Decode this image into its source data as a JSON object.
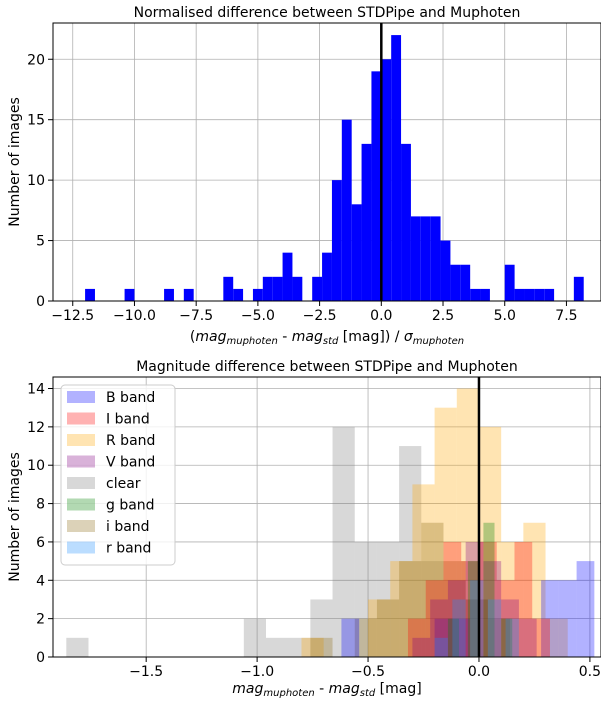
{
  "chart_data": [
    {
      "type": "histogram",
      "title": "Normalised difference between STDPipe and Muphoten",
      "xlabel": "(mag_muphoten - mag_std [mag]) / σ_muphoten",
      "xlabel_parts": {
        "open": "(",
        "mag": "mag",
        "sub_a": "muphoten",
        "minus": " - ",
        "mag2": "mag",
        "sub_b": "std",
        "unit": " [mag]) / ",
        "sigma": "σ",
        "sub_c": "muphoten"
      },
      "ylabel": "Number of images",
      "xlim": [
        -13.3,
        8.9
      ],
      "ylim": [
        0,
        23
      ],
      "xticks": [
        -12.5,
        -10.0,
        -7.5,
        -5.0,
        -2.5,
        0.0,
        2.5,
        5.0,
        7.5
      ],
      "xtick_labels": [
        "−12.5",
        "−10.0",
        "−7.5",
        "−5.0",
        "−2.5",
        "0.0",
        "2.5",
        "5.0",
        "7.5"
      ],
      "yticks": [
        0,
        5,
        10,
        15,
        20
      ],
      "ytick_labels": [
        "0",
        "5",
        "10",
        "15",
        "20"
      ],
      "grid": true,
      "color": "#0000ff",
      "vline_x": 0,
      "bins": [
        {
          "x0": -12.0,
          "x1": -11.6,
          "count": 1
        },
        {
          "x0": -10.4,
          "x1": -10.0,
          "count": 1
        },
        {
          "x0": -8.8,
          "x1": -8.4,
          "count": 1
        },
        {
          "x0": -8.0,
          "x1": -7.6,
          "count": 1
        },
        {
          "x0": -6.4,
          "x1": -6.0,
          "count": 2
        },
        {
          "x0": -6.0,
          "x1": -5.6,
          "count": 1
        },
        {
          "x0": -5.2,
          "x1": -4.8,
          "count": 1
        },
        {
          "x0": -4.8,
          "x1": -4.4,
          "count": 2
        },
        {
          "x0": -4.4,
          "x1": -4.0,
          "count": 2
        },
        {
          "x0": -4.0,
          "x1": -3.6,
          "count": 4
        },
        {
          "x0": -3.6,
          "x1": -3.2,
          "count": 2
        },
        {
          "x0": -2.8,
          "x1": -2.4,
          "count": 2
        },
        {
          "x0": -2.4,
          "x1": -2.0,
          "count": 4
        },
        {
          "x0": -2.0,
          "x1": -1.6,
          "count": 10
        },
        {
          "x0": -1.6,
          "x1": -1.2,
          "count": 15
        },
        {
          "x0": -1.2,
          "x1": -0.8,
          "count": 8
        },
        {
          "x0": -0.8,
          "x1": -0.4,
          "count": 13
        },
        {
          "x0": -0.4,
          "x1": 0.0,
          "count": 19
        },
        {
          "x0": 0.0,
          "x1": 0.4,
          "count": 20
        },
        {
          "x0": 0.4,
          "x1": 0.8,
          "count": 22
        },
        {
          "x0": 0.8,
          "x1": 1.2,
          "count": 13
        },
        {
          "x0": 1.2,
          "x1": 1.6,
          "count": 7
        },
        {
          "x0": 1.6,
          "x1": 2.0,
          "count": 7
        },
        {
          "x0": 2.0,
          "x1": 2.4,
          "count": 7
        },
        {
          "x0": 2.4,
          "x1": 2.8,
          "count": 5
        },
        {
          "x0": 2.8,
          "x1": 3.2,
          "count": 3
        },
        {
          "x0": 3.2,
          "x1": 3.6,
          "count": 3
        },
        {
          "x0": 3.6,
          "x1": 4.0,
          "count": 1
        },
        {
          "x0": 4.0,
          "x1": 4.4,
          "count": 1
        },
        {
          "x0": 5.0,
          "x1": 5.4,
          "count": 3
        },
        {
          "x0": 5.4,
          "x1": 5.8,
          "count": 1
        },
        {
          "x0": 5.8,
          "x1": 6.2,
          "count": 1
        },
        {
          "x0": 6.2,
          "x1": 6.6,
          "count": 1
        },
        {
          "x0": 6.6,
          "x1": 7.0,
          "count": 1
        },
        {
          "x0": 7.8,
          "x1": 8.2,
          "count": 2
        }
      ]
    },
    {
      "type": "histogram",
      "title": "Magnitude difference between STDPipe and Muphoten",
      "xlabel": "mag_muphoten - mag_std [mag]",
      "xlabel_parts": {
        "mag": "mag",
        "sub_a": "muphoten",
        "minus": " - ",
        "mag2": "mag",
        "sub_b": "std",
        "unit": " [mag]"
      },
      "ylabel": "Number of images",
      "xlim": [
        -1.92,
        0.55
      ],
      "ylim": [
        0,
        14.6
      ],
      "xticks": [
        -1.5,
        -1.0,
        -0.5,
        0.0,
        0.5
      ],
      "xtick_labels": [
        "−1.5",
        "−1.0",
        "−0.5",
        "0.0",
        "0.5"
      ],
      "yticks": [
        0,
        2,
        4,
        6,
        8,
        10,
        12,
        14
      ],
      "ytick_labels": [
        "0",
        "2",
        "4",
        "6",
        "8",
        "10",
        "12",
        "14"
      ],
      "grid": true,
      "vline_x": 0,
      "legend_position": "upper-left",
      "series": [
        {
          "name": "clear",
          "color": "#7f7f7f",
          "bins": [
            {
              "x0": -1.86,
              "x1": -1.76,
              "count": 1
            },
            {
              "x0": -1.06,
              "x1": -0.96,
              "count": 2
            },
            {
              "x0": -0.96,
              "x1": -0.86,
              "count": 1
            },
            {
              "x0": -0.86,
              "x1": -0.76,
              "count": 1
            },
            {
              "x0": -0.76,
              "x1": -0.66,
              "count": 3
            },
            {
              "x0": -0.66,
              "x1": -0.56,
              "count": 12
            },
            {
              "x0": -0.56,
              "x1": -0.46,
              "count": 6
            },
            {
              "x0": -0.46,
              "x1": -0.36,
              "count": 6
            },
            {
              "x0": -0.36,
              "x1": -0.26,
              "count": 11
            },
            {
              "x0": -0.26,
              "x1": -0.16,
              "count": 5
            },
            {
              "x0": -0.16,
              "x1": -0.06,
              "count": 4
            },
            {
              "x0": -0.06,
              "x1": 0.04,
              "count": 3
            }
          ]
        },
        {
          "name": "R band",
          "color": "#ffa500",
          "bins": [
            {
              "x0": -0.8,
              "x1": -0.7,
              "count": 1
            },
            {
              "x0": -0.5,
              "x1": -0.4,
              "count": 3
            },
            {
              "x0": -0.4,
              "x1": -0.3,
              "count": 5
            },
            {
              "x0": -0.3,
              "x1": -0.2,
              "count": 9
            },
            {
              "x0": -0.2,
              "x1": -0.1,
              "count": 13
            },
            {
              "x0": -0.1,
              "x1": 0.0,
              "count": 14
            },
            {
              "x0": 0.0,
              "x1": 0.1,
              "count": 12
            },
            {
              "x0": 0.1,
              "x1": 0.2,
              "count": 6
            },
            {
              "x0": 0.2,
              "x1": 0.3,
              "count": 7
            },
            {
              "x0": 0.3,
              "x1": 0.4,
              "count": 2
            }
          ]
        },
        {
          "name": "i band",
          "color": "#8b6914",
          "bins": [
            {
              "x0": -0.76,
              "x1": -0.66,
              "count": 1
            },
            {
              "x0": -0.56,
              "x1": -0.46,
              "count": 2
            },
            {
              "x0": -0.46,
              "x1": -0.36,
              "count": 3
            },
            {
              "x0": -0.36,
              "x1": -0.26,
              "count": 5
            },
            {
              "x0": -0.26,
              "x1": -0.16,
              "count": 7
            },
            {
              "x0": -0.16,
              "x1": -0.06,
              "count": 5
            },
            {
              "x0": -0.06,
              "x1": 0.04,
              "count": 3
            },
            {
              "x0": 0.04,
              "x1": 0.14,
              "count": 2
            }
          ]
        },
        {
          "name": "B band",
          "color": "#0000ff",
          "bins": [
            {
              "x0": -0.62,
              "x1": -0.54,
              "count": 2
            },
            {
              "x0": -0.2,
              "x1": -0.12,
              "count": 2
            },
            {
              "x0": -0.12,
              "x1": -0.04,
              "count": 2
            },
            {
              "x0": 0.28,
              "x1": 0.36,
              "count": 4
            },
            {
              "x0": 0.36,
              "x1": 0.44,
              "count": 4
            },
            {
              "x0": 0.44,
              "x1": 0.52,
              "count": 5
            }
          ]
        },
        {
          "name": "I band",
          "color": "#ff0000",
          "bins": [
            {
              "x0": -0.32,
              "x1": -0.24,
              "count": 2
            },
            {
              "x0": -0.24,
              "x1": -0.16,
              "count": 4
            },
            {
              "x0": -0.16,
              "x1": -0.08,
              "count": 6
            },
            {
              "x0": -0.08,
              "x1": 0.0,
              "count": 5
            },
            {
              "x0": 0.0,
              "x1": 0.08,
              "count": 6
            },
            {
              "x0": 0.08,
              "x1": 0.16,
              "count": 4
            },
            {
              "x0": 0.16,
              "x1": 0.24,
              "count": 6
            },
            {
              "x0": 0.24,
              "x1": 0.32,
              "count": 2
            }
          ]
        },
        {
          "name": "V band",
          "color": "#800080",
          "bins": [
            {
              "x0": -0.3,
              "x1": -0.22,
              "count": 1
            },
            {
              "x0": -0.22,
              "x1": -0.14,
              "count": 3
            },
            {
              "x0": -0.14,
              "x1": -0.06,
              "count": 4
            },
            {
              "x0": -0.06,
              "x1": 0.02,
              "count": 6
            },
            {
              "x0": 0.02,
              "x1": 0.1,
              "count": 5
            },
            {
              "x0": 0.1,
              "x1": 0.18,
              "count": 3
            },
            {
              "x0": 0.18,
              "x1": 0.26,
              "count": 2
            }
          ]
        },
        {
          "name": "g band",
          "color": "#008000",
          "bins": [
            {
              "x0": -0.14,
              "x1": -0.09,
              "count": 2
            },
            {
              "x0": -0.05,
              "x1": 0.0,
              "count": 5
            },
            {
              "x0": 0.02,
              "x1": 0.07,
              "count": 7
            },
            {
              "x0": 0.1,
              "x1": 0.15,
              "count": 2
            }
          ]
        },
        {
          "name": "r band",
          "color": "#1e90ff",
          "bins": [
            {
              "x0": -0.2,
              "x1": -0.14,
              "count": 1
            },
            {
              "x0": -0.12,
              "x1": -0.06,
              "count": 3
            },
            {
              "x0": -0.04,
              "x1": 0.02,
              "count": 4
            },
            {
              "x0": 0.04,
              "x1": 0.1,
              "count": 3
            },
            {
              "x0": 0.12,
              "x1": 0.18,
              "count": 2
            }
          ]
        }
      ],
      "legend_order": [
        "B band",
        "I band",
        "R band",
        "V band",
        "clear",
        "g band",
        "i band",
        "r band"
      ]
    }
  ]
}
